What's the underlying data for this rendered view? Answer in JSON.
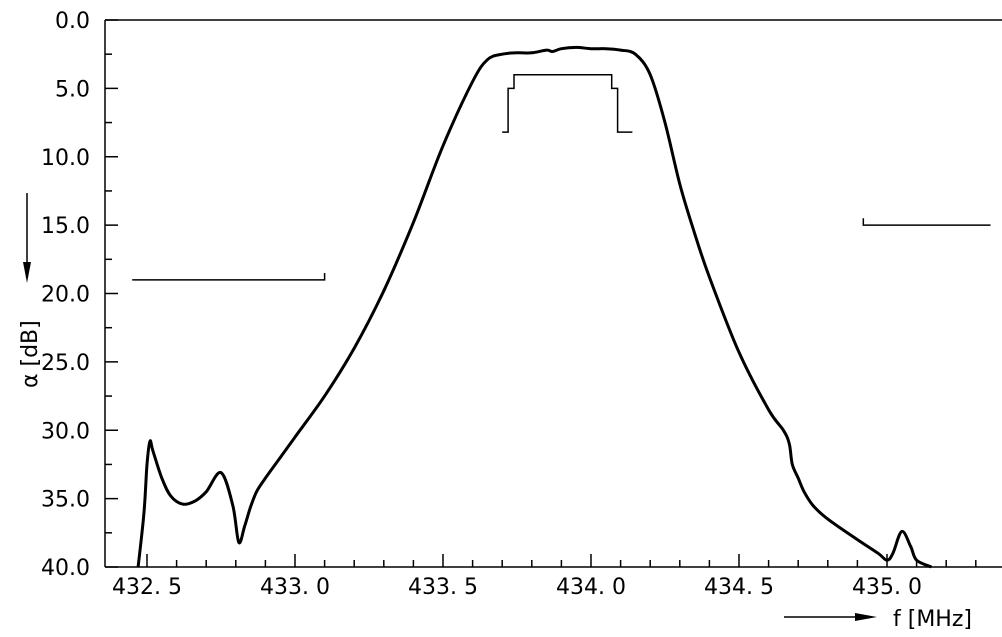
{
  "chart_data": {
    "type": "line",
    "title": "",
    "xlabel": "f [MHz]",
    "ylabel": "α [dB]",
    "xlim": [
      432.45,
      435.35
    ],
    "ylim": [
      0.0,
      40.0
    ],
    "y_inverted": true,
    "x_ticks": [
      432.5,
      433.0,
      433.5,
      434.0,
      434.5,
      435.0
    ],
    "x_tick_labels": [
      "432. 5",
      "433. 0",
      "433. 5",
      "434. 0",
      "434. 5",
      "435. 0"
    ],
    "y_ticks": [
      0,
      5,
      10,
      15,
      20,
      25,
      30,
      35,
      40
    ],
    "y_tick_labels": [
      "0.0",
      "5.0",
      "10.0",
      "15.0",
      "20.0",
      "25.0",
      "30.0",
      "35.0",
      "40.0"
    ],
    "grid": false,
    "series": [
      {
        "x": [
          432.47,
          432.49,
          432.5,
          432.51,
          432.52,
          432.55,
          432.58,
          432.62,
          432.66,
          432.7,
          432.75,
          432.79,
          432.81,
          432.83,
          432.85,
          432.87,
          432.9,
          432.95,
          433.0,
          433.1,
          433.2,
          433.3,
          433.4,
          433.5,
          433.6,
          433.65,
          433.7,
          433.75,
          433.8,
          433.85,
          433.87,
          433.9,
          433.95,
          434.0,
          434.05,
          434.1,
          434.15,
          434.2,
          434.25,
          434.3,
          434.35,
          434.4,
          434.5,
          434.6,
          434.65,
          434.67,
          434.68,
          434.7,
          434.72,
          434.75,
          434.8,
          434.9,
          434.97,
          435.0,
          435.02,
          435.05,
          435.08,
          435.1,
          435.15
        ],
        "y": [
          40.0,
          36.0,
          32.5,
          30.8,
          31.5,
          33.5,
          34.8,
          35.4,
          35.2,
          34.5,
          33.1,
          35.5,
          38.2,
          37.0,
          35.6,
          34.5,
          33.5,
          32.0,
          30.5,
          27.5,
          24.0,
          19.8,
          14.8,
          9.2,
          4.5,
          2.9,
          2.5,
          2.4,
          2.4,
          2.2,
          2.3,
          2.1,
          2.0,
          2.1,
          2.1,
          2.2,
          2.5,
          4.0,
          7.5,
          12.0,
          15.6,
          18.8,
          24.3,
          28.5,
          30.0,
          31.0,
          32.5,
          33.5,
          34.5,
          35.5,
          36.5,
          38.0,
          39.0,
          39.5,
          39.0,
          37.4,
          38.5,
          39.5,
          40.0
        ]
      }
    ],
    "tolerance_mask": {
      "passband_steps": [
        {
          "x": 433.7,
          "y": 8.2
        },
        {
          "x": 433.72,
          "y": 8.2
        },
        {
          "x": 433.72,
          "y": 5.0
        },
        {
          "x": 433.74,
          "y": 5.0
        },
        {
          "x": 433.74,
          "y": 4.0
        },
        {
          "x": 434.07,
          "y": 4.0
        },
        {
          "x": 434.07,
          "y": 5.0
        },
        {
          "x": 434.09,
          "y": 5.0
        },
        {
          "x": 434.09,
          "y": 8.2
        },
        {
          "x": 434.14,
          "y": 8.2
        }
      ],
      "left_stopband": {
        "x_start": 432.45,
        "x_end": 433.1,
        "y": 19.0,
        "tick_y": 18.5
      },
      "right_stopband": {
        "x_start": 434.92,
        "x_end": 435.35,
        "y": 15.0,
        "tick_y": 14.5
      }
    }
  }
}
